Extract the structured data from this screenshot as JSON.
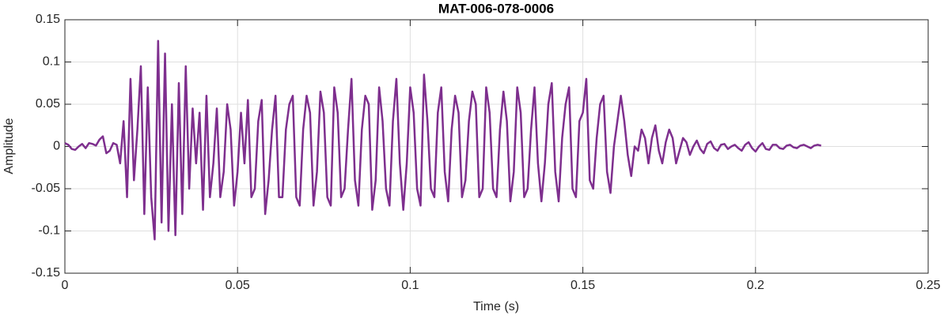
{
  "chart_data": {
    "type": "line",
    "title": "MAT-006-078-0006",
    "xlabel": "Time (s)",
    "ylabel": "Amplitude",
    "color": "#7e2f8e",
    "x": [
      0,
      0.001,
      0.002,
      0.003,
      0.004,
      0.005,
      0.006,
      0.007,
      0.008,
      0.009,
      0.01,
      0.011,
      0.012,
      0.013,
      0.014,
      0.015,
      0.016,
      0.017,
      0.018,
      0.019,
      0.02,
      0.021,
      0.022,
      0.023,
      0.024,
      0.025,
      0.026,
      0.027,
      0.028,
      0.029,
      0.03,
      0.031,
      0.032,
      0.033,
      0.034,
      0.035,
      0.036,
      0.037,
      0.038,
      0.039,
      0.04,
      0.041,
      0.042,
      0.043,
      0.044,
      0.045,
      0.046,
      0.047,
      0.048,
      0.049,
      0.05,
      0.051,
      0.052,
      0.053,
      0.054,
      0.055,
      0.056,
      0.057,
      0.058,
      0.059,
      0.06,
      0.061,
      0.062,
      0.063,
      0.064,
      0.065,
      0.066,
      0.067,
      0.068,
      0.069,
      0.07,
      0.071,
      0.072,
      0.073,
      0.074,
      0.075,
      0.076,
      0.077,
      0.078,
      0.079,
      0.08,
      0.081,
      0.082,
      0.083,
      0.084,
      0.085,
      0.086,
      0.087,
      0.088,
      0.089,
      0.09,
      0.091,
      0.092,
      0.093,
      0.094,
      0.095,
      0.096,
      0.097,
      0.098,
      0.099,
      0.1,
      0.101,
      0.102,
      0.103,
      0.104,
      0.105,
      0.106,
      0.107,
      0.108,
      0.109,
      0.11,
      0.111,
      0.112,
      0.113,
      0.114,
      0.115,
      0.116,
      0.117,
      0.118,
      0.119,
      0.12,
      0.121,
      0.122,
      0.123,
      0.124,
      0.125,
      0.126,
      0.127,
      0.128,
      0.129,
      0.13,
      0.131,
      0.132,
      0.133,
      0.134,
      0.135,
      0.136,
      0.137,
      0.138,
      0.139,
      0.14,
      0.141,
      0.142,
      0.143,
      0.144,
      0.145,
      0.146,
      0.147,
      0.148,
      0.149,
      0.15,
      0.151,
      0.152,
      0.153,
      0.154,
      0.155,
      0.156,
      0.157,
      0.158,
      0.159,
      0.16,
      0.161,
      0.162,
      0.163,
      0.164,
      0.165,
      0.166,
      0.167,
      0.168,
      0.169,
      0.17,
      0.171,
      0.172,
      0.173,
      0.174,
      0.175,
      0.176,
      0.177,
      0.178,
      0.179,
      0.18,
      0.181,
      0.182,
      0.183,
      0.184,
      0.185,
      0.186,
      0.187,
      0.188,
      0.189,
      0.19,
      0.191,
      0.192,
      0.193,
      0.194,
      0.195,
      0.196,
      0.197,
      0.198,
      0.199,
      0.2,
      0.201,
      0.202,
      0.203,
      0.204,
      0.205,
      0.206,
      0.207,
      0.208,
      0.209,
      0.21,
      0.211,
      0.212,
      0.213,
      0.214,
      0.215,
      0.216,
      0.217,
      0.218,
      0.219
    ],
    "values": [
      0.004,
      0.002,
      -0.003,
      -0.004,
      0,
      0.003,
      -0.002,
      0.004,
      0.003,
      0.001,
      0.008,
      0.012,
      -0.008,
      -0.005,
      0.004,
      0.002,
      -0.02,
      0.03,
      -0.06,
      0.08,
      -0.04,
      0.02,
      0.095,
      -0.08,
      0.07,
      -0.06,
      -0.11,
      0.125,
      -0.09,
      0.11,
      -0.1,
      0.05,
      -0.105,
      0.075,
      -0.08,
      0.095,
      -0.05,
      0.045,
      -0.02,
      0.04,
      -0.075,
      0.06,
      -0.06,
      -0.02,
      0.045,
      -0.06,
      -0.03,
      0.05,
      0.02,
      -0.07,
      -0.03,
      0.04,
      -0.02,
      0.055,
      -0.06,
      -0.05,
      0.03,
      0.055,
      -0.08,
      -0.04,
      0.02,
      0.06,
      -0.06,
      -0.06,
      0.02,
      0.05,
      0.06,
      -0.06,
      -0.07,
      0.02,
      0.06,
      0.04,
      -0.07,
      -0.03,
      0.065,
      0.04,
      -0.06,
      -0.07,
      0.07,
      0.04,
      -0.06,
      -0.05,
      0.02,
      0.08,
      -0.04,
      -0.07,
      0.02,
      0.06,
      0.05,
      -0.075,
      -0.04,
      0.07,
      0.03,
      -0.05,
      -0.07,
      0.03,
      0.08,
      -0.02,
      -0.075,
      -0.02,
      0.07,
      0.04,
      -0.05,
      -0.07,
      0.085,
      0.03,
      -0.05,
      -0.06,
      0.04,
      0.07,
      -0.03,
      -0.065,
      0.02,
      0.06,
      0.04,
      -0.06,
      -0.04,
      0.03,
      0.065,
      0.05,
      -0.06,
      -0.05,
      0.07,
      0.04,
      -0.05,
      -0.06,
      0.02,
      0.065,
      0.03,
      -0.065,
      -0.03,
      0.07,
      0.04,
      -0.06,
      -0.05,
      0.02,
      0.07,
      -0.02,
      -0.065,
      -0.02,
      0.05,
      0.075,
      -0.03,
      -0.065,
      0.01,
      0.05,
      0.07,
      -0.05,
      -0.06,
      0.03,
      0.04,
      0.08,
      -0.04,
      -0.05,
      0.01,
      0.05,
      0.06,
      -0.03,
      -0.055,
      0,
      0.03,
      0.06,
      0.03,
      -0.01,
      -0.035,
      0,
      -0.005,
      0.02,
      0.01,
      -0.02,
      0.01,
      0.025,
      -0.005,
      -0.02,
      0.005,
      0.02,
      0.01,
      -0.02,
      -0.005,
      0.01,
      0.005,
      -0.01,
      0,
      0.007,
      -0.003,
      -0.008,
      0.003,
      0.006,
      -0.002,
      -0.005,
      0.002,
      0.003,
      -0.003,
      0,
      0.002,
      -0.002,
      -0.005,
      0.002,
      0.005,
      -0.002,
      -0.006,
      0,
      0.004,
      -0.003,
      -0.004,
      0.002,
      0.002,
      -0.002,
      -0.003,
      0.001,
      0.002,
      -0.001,
      -0.002,
      0.001,
      0.002,
      0,
      -0.002,
      0.001,
      0.002,
      0.001
    ],
    "xlim": [
      0,
      0.25
    ],
    "xticks": [
      0,
      0.05,
      0.1,
      0.15,
      0.2,
      0.25
    ],
    "ylim": [
      -0.15,
      0.15
    ],
    "yticks": [
      -0.15,
      -0.1,
      -0.05,
      0,
      0.05,
      0.1,
      0.15
    ],
    "grid": true
  }
}
